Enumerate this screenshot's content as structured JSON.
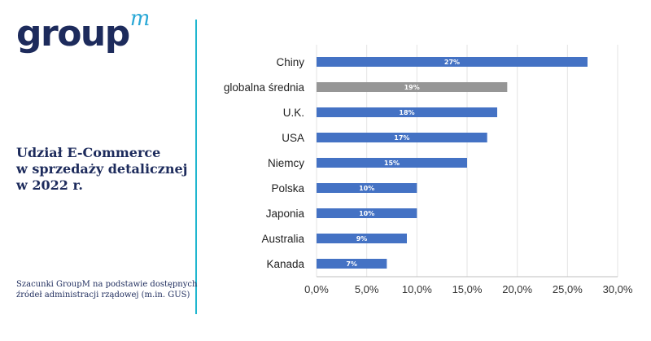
{
  "logo": {
    "main": "group",
    "sup": "m"
  },
  "title": {
    "line1": "Udział E-Commerce",
    "line2": "w sprzedaży detalicznej",
    "line3": "w 2022 r."
  },
  "note": {
    "line1": "Szacunki GroupM na podstawie dostępnych",
    "line2": "źródeł administracji rządowej (m.in. GUS)"
  },
  "colors": {
    "bar": "#4472c4",
    "highlight": "#969696",
    "divider": "#1fb6cf",
    "navy": "#1d2b5c"
  },
  "chart_data": {
    "type": "bar",
    "orientation": "horizontal",
    "categories": [
      "Chiny",
      "globalna średnia",
      "U.K.",
      "USA",
      "Niemcy",
      "Polska",
      "Japonia",
      "Australia",
      "Kanada"
    ],
    "values": [
      27,
      19,
      18,
      17,
      15,
      10,
      10,
      9,
      7
    ],
    "value_labels": [
      "27%",
      "19%",
      "18%",
      "17%",
      "15%",
      "10%",
      "10%",
      "9%",
      "7%"
    ],
    "highlight_category": "globalna średnia",
    "xlim": [
      0,
      30
    ],
    "xticks": [
      "0,0%",
      "5,0%",
      "10,0%",
      "15,0%",
      "20,0%",
      "25,0%",
      "30,0%"
    ],
    "grid": true,
    "title": "",
    "xlabel": "",
    "ylabel": ""
  }
}
